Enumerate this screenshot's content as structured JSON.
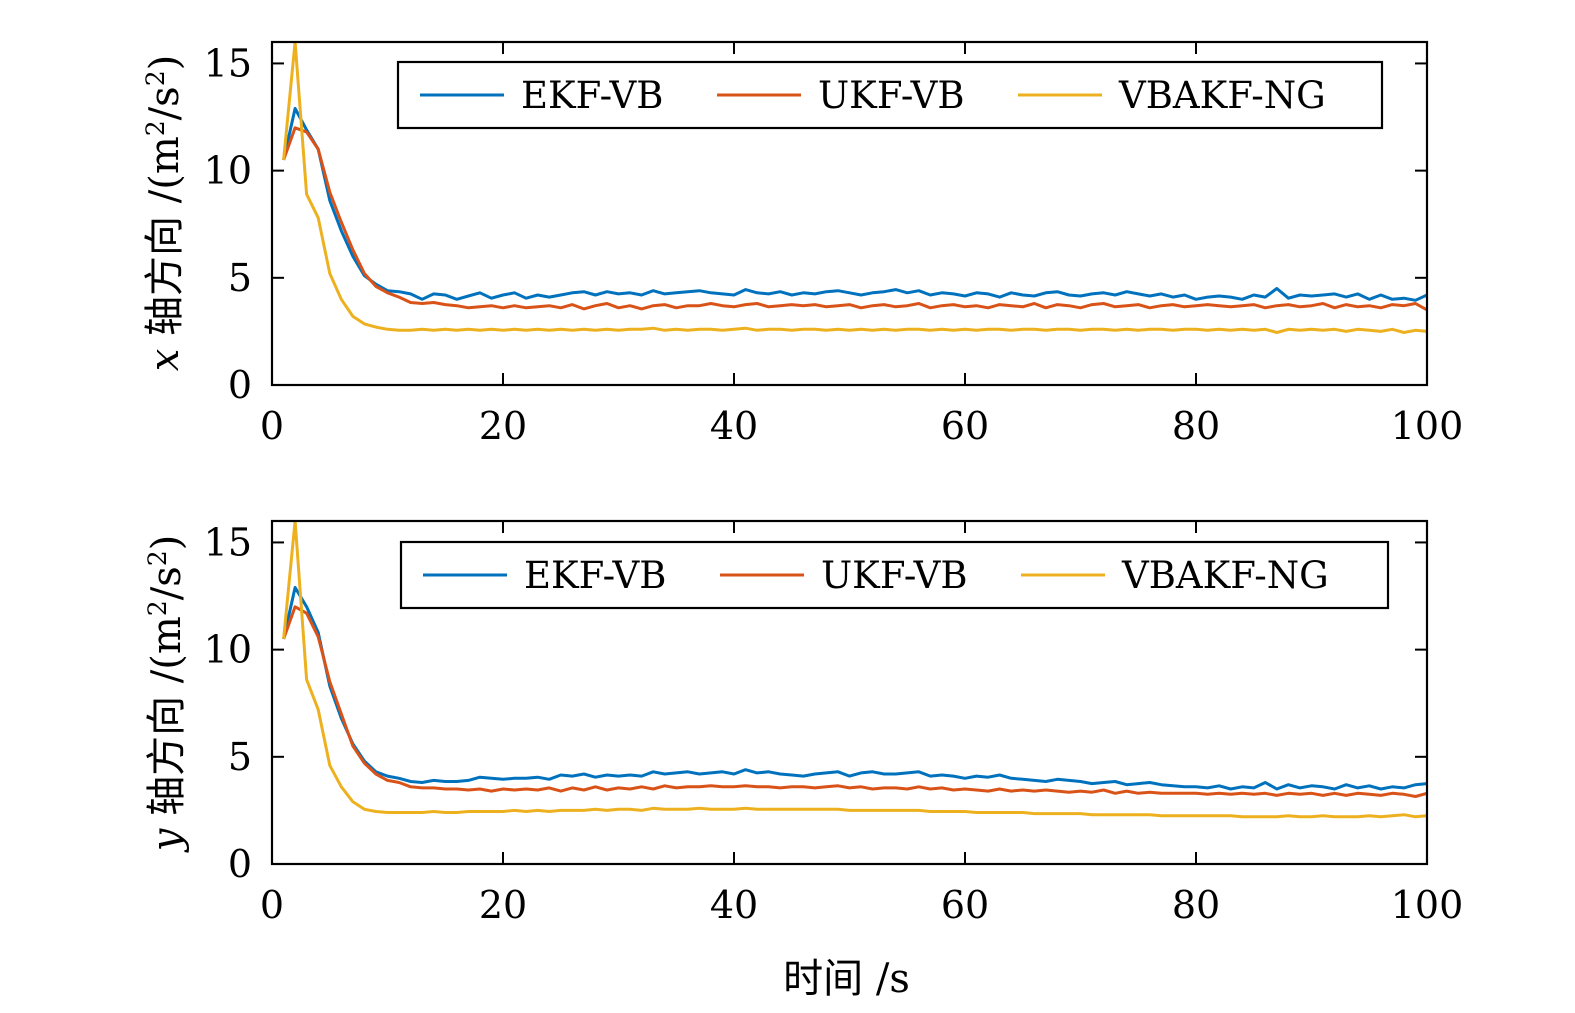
{
  "chart_data": [
    {
      "type": "line",
      "ylabel": {
        "var": "x",
        "cn": "轴方向",
        "unit_open": "/(m",
        "unit_sup1": "2",
        "unit_mid": "/s",
        "unit_sup2": "2",
        "unit_close": ")"
      },
      "xlim": [
        0,
        100
      ],
      "ylim": [
        0,
        16
      ],
      "xticks": [
        0,
        20,
        40,
        60,
        80,
        100
      ],
      "yticks": [
        0,
        5,
        10,
        15
      ],
      "legend": "top-right",
      "grid": false,
      "x": [
        1,
        2,
        3,
        4,
        5,
        6,
        7,
        8,
        9,
        10,
        11,
        12,
        13,
        14,
        15,
        16,
        17,
        18,
        19,
        20,
        21,
        22,
        23,
        24,
        25,
        26,
        27,
        28,
        29,
        30,
        31,
        32,
        33,
        34,
        35,
        36,
        37,
        38,
        39,
        40,
        41,
        42,
        43,
        44,
        45,
        46,
        47,
        48,
        49,
        50,
        51,
        52,
        53,
        54,
        55,
        56,
        57,
        58,
        59,
        60,
        61,
        62,
        63,
        64,
        65,
        66,
        67,
        68,
        69,
        70,
        71,
        72,
        73,
        74,
        75,
        76,
        77,
        78,
        79,
        80,
        81,
        82,
        83,
        84,
        85,
        86,
        87,
        88,
        89,
        90,
        91,
        92,
        93,
        94,
        95,
        96,
        97,
        98,
        99,
        100
      ],
      "series": [
        {
          "name": "EKF-VB",
          "color": "#0072BD",
          "values": [
            10.5,
            12.9,
            11.9,
            11.0,
            8.6,
            7.2,
            6.0,
            5.1,
            4.7,
            4.4,
            4.35,
            4.25,
            4.0,
            4.25,
            4.2,
            4.0,
            4.15,
            4.3,
            4.05,
            4.2,
            4.3,
            4.05,
            4.2,
            4.1,
            4.2,
            4.3,
            4.35,
            4.2,
            4.35,
            4.25,
            4.3,
            4.2,
            4.4,
            4.25,
            4.3,
            4.35,
            4.4,
            4.3,
            4.25,
            4.2,
            4.45,
            4.3,
            4.25,
            4.35,
            4.2,
            4.3,
            4.25,
            4.35,
            4.4,
            4.3,
            4.2,
            4.3,
            4.35,
            4.45,
            4.3,
            4.4,
            4.2,
            4.3,
            4.25,
            4.15,
            4.3,
            4.25,
            4.1,
            4.3,
            4.2,
            4.15,
            4.3,
            4.35,
            4.2,
            4.15,
            4.25,
            4.3,
            4.2,
            4.35,
            4.25,
            4.15,
            4.25,
            4.1,
            4.2,
            4.0,
            4.1,
            4.15,
            4.1,
            4.0,
            4.2,
            4.1,
            4.5,
            4.05,
            4.2,
            4.15,
            4.2,
            4.25,
            4.1,
            4.25,
            4.0,
            4.2,
            4.0,
            4.05,
            3.95,
            4.2
          ]
        },
        {
          "name": "UKF-VB",
          "color": "#D95319",
          "values": [
            10.5,
            12.0,
            11.8,
            11.0,
            9.0,
            7.6,
            6.3,
            5.2,
            4.6,
            4.3,
            4.1,
            3.85,
            3.8,
            3.85,
            3.75,
            3.7,
            3.6,
            3.65,
            3.7,
            3.6,
            3.7,
            3.6,
            3.65,
            3.7,
            3.6,
            3.75,
            3.55,
            3.7,
            3.8,
            3.6,
            3.7,
            3.55,
            3.7,
            3.75,
            3.6,
            3.7,
            3.7,
            3.8,
            3.7,
            3.65,
            3.75,
            3.8,
            3.65,
            3.7,
            3.75,
            3.7,
            3.75,
            3.65,
            3.7,
            3.75,
            3.6,
            3.7,
            3.75,
            3.65,
            3.7,
            3.8,
            3.6,
            3.7,
            3.75,
            3.65,
            3.7,
            3.6,
            3.75,
            3.7,
            3.65,
            3.8,
            3.6,
            3.75,
            3.7,
            3.6,
            3.75,
            3.8,
            3.65,
            3.7,
            3.75,
            3.6,
            3.7,
            3.75,
            3.65,
            3.7,
            3.75,
            3.7,
            3.65,
            3.7,
            3.75,
            3.6,
            3.7,
            3.75,
            3.65,
            3.7,
            3.8,
            3.6,
            3.75,
            3.65,
            3.7,
            3.6,
            3.75,
            3.7,
            3.8,
            3.5
          ]
        },
        {
          "name": "VBAKF-NG",
          "color": "#EDB120",
          "values": [
            10.5,
            16.0,
            8.9,
            7.8,
            5.2,
            4.0,
            3.2,
            2.85,
            2.7,
            2.6,
            2.55,
            2.55,
            2.6,
            2.55,
            2.6,
            2.55,
            2.6,
            2.55,
            2.6,
            2.55,
            2.6,
            2.55,
            2.6,
            2.55,
            2.6,
            2.55,
            2.6,
            2.55,
            2.6,
            2.55,
            2.6,
            2.6,
            2.65,
            2.55,
            2.6,
            2.55,
            2.6,
            2.6,
            2.55,
            2.6,
            2.65,
            2.55,
            2.6,
            2.6,
            2.55,
            2.6,
            2.6,
            2.55,
            2.6,
            2.55,
            2.6,
            2.55,
            2.6,
            2.55,
            2.6,
            2.6,
            2.55,
            2.6,
            2.55,
            2.6,
            2.55,
            2.6,
            2.6,
            2.55,
            2.6,
            2.6,
            2.55,
            2.6,
            2.6,
            2.55,
            2.6,
            2.6,
            2.55,
            2.6,
            2.55,
            2.6,
            2.6,
            2.55,
            2.6,
            2.6,
            2.55,
            2.6,
            2.55,
            2.6,
            2.55,
            2.6,
            2.45,
            2.6,
            2.55,
            2.6,
            2.55,
            2.6,
            2.5,
            2.6,
            2.55,
            2.5,
            2.6,
            2.45,
            2.55,
            2.5
          ]
        }
      ]
    },
    {
      "type": "line",
      "ylabel": {
        "var": "y",
        "cn": "轴方向",
        "unit_open": "/(m",
        "unit_sup1": "2",
        "unit_mid": "/s",
        "unit_sup2": "2",
        "unit_close": ")"
      },
      "xlabel": "时间 /s",
      "xlim": [
        0,
        100
      ],
      "ylim": [
        0,
        16
      ],
      "xticks": [
        0,
        20,
        40,
        60,
        80,
        100
      ],
      "yticks": [
        0,
        5,
        10,
        15
      ],
      "legend": "top-right",
      "grid": false,
      "x": [
        1,
        2,
        3,
        4,
        5,
        6,
        7,
        8,
        9,
        10,
        11,
        12,
        13,
        14,
        15,
        16,
        17,
        18,
        19,
        20,
        21,
        22,
        23,
        24,
        25,
        26,
        27,
        28,
        29,
        30,
        31,
        32,
        33,
        34,
        35,
        36,
        37,
        38,
        39,
        40,
        41,
        42,
        43,
        44,
        45,
        46,
        47,
        48,
        49,
        50,
        51,
        52,
        53,
        54,
        55,
        56,
        57,
        58,
        59,
        60,
        61,
        62,
        63,
        64,
        65,
        66,
        67,
        68,
        69,
        70,
        71,
        72,
        73,
        74,
        75,
        76,
        77,
        78,
        79,
        80,
        81,
        82,
        83,
        84,
        85,
        86,
        87,
        88,
        89,
        90,
        91,
        92,
        93,
        94,
        95,
        96,
        97,
        98,
        99,
        100
      ],
      "series": [
        {
          "name": "EKF-VB",
          "color": "#0072BD",
          "values": [
            10.5,
            12.9,
            12.0,
            10.8,
            8.3,
            6.8,
            5.6,
            4.8,
            4.3,
            4.1,
            4.0,
            3.85,
            3.8,
            3.9,
            3.85,
            3.85,
            3.9,
            4.05,
            4.0,
            3.95,
            4.0,
            4.0,
            4.05,
            3.95,
            4.15,
            4.1,
            4.2,
            4.05,
            4.15,
            4.1,
            4.15,
            4.1,
            4.3,
            4.2,
            4.25,
            4.3,
            4.2,
            4.25,
            4.3,
            4.2,
            4.4,
            4.25,
            4.3,
            4.2,
            4.15,
            4.1,
            4.2,
            4.25,
            4.3,
            4.1,
            4.25,
            4.3,
            4.2,
            4.2,
            4.25,
            4.3,
            4.1,
            4.15,
            4.1,
            4.0,
            4.1,
            4.05,
            4.15,
            4.0,
            3.95,
            3.9,
            3.85,
            3.95,
            3.9,
            3.85,
            3.75,
            3.8,
            3.85,
            3.7,
            3.75,
            3.8,
            3.7,
            3.65,
            3.6,
            3.6,
            3.55,
            3.65,
            3.5,
            3.6,
            3.55,
            3.8,
            3.5,
            3.7,
            3.55,
            3.65,
            3.6,
            3.5,
            3.7,
            3.55,
            3.65,
            3.5,
            3.6,
            3.55,
            3.7,
            3.75
          ]
        },
        {
          "name": "UKF-VB",
          "color": "#D95319",
          "values": [
            10.5,
            12.0,
            11.7,
            10.6,
            8.5,
            7.0,
            5.5,
            4.7,
            4.2,
            3.9,
            3.8,
            3.6,
            3.55,
            3.55,
            3.5,
            3.5,
            3.45,
            3.5,
            3.4,
            3.5,
            3.45,
            3.5,
            3.45,
            3.55,
            3.4,
            3.55,
            3.45,
            3.6,
            3.45,
            3.55,
            3.5,
            3.6,
            3.5,
            3.65,
            3.55,
            3.6,
            3.6,
            3.65,
            3.6,
            3.6,
            3.65,
            3.6,
            3.6,
            3.55,
            3.6,
            3.6,
            3.55,
            3.6,
            3.65,
            3.55,
            3.6,
            3.5,
            3.55,
            3.55,
            3.5,
            3.6,
            3.5,
            3.55,
            3.45,
            3.5,
            3.45,
            3.4,
            3.5,
            3.4,
            3.45,
            3.4,
            3.45,
            3.4,
            3.35,
            3.4,
            3.35,
            3.45,
            3.3,
            3.4,
            3.3,
            3.35,
            3.3,
            3.3,
            3.3,
            3.3,
            3.25,
            3.3,
            3.25,
            3.3,
            3.25,
            3.3,
            3.2,
            3.3,
            3.25,
            3.3,
            3.2,
            3.3,
            3.2,
            3.3,
            3.25,
            3.2,
            3.3,
            3.25,
            3.15,
            3.3
          ]
        },
        {
          "name": "VBAKF-NG",
          "color": "#EDB120",
          "values": [
            10.5,
            16.0,
            8.6,
            7.2,
            4.6,
            3.6,
            2.9,
            2.55,
            2.45,
            2.4,
            2.4,
            2.4,
            2.4,
            2.45,
            2.4,
            2.4,
            2.45,
            2.45,
            2.45,
            2.45,
            2.5,
            2.45,
            2.5,
            2.45,
            2.5,
            2.5,
            2.5,
            2.55,
            2.5,
            2.55,
            2.55,
            2.5,
            2.6,
            2.55,
            2.55,
            2.55,
            2.6,
            2.55,
            2.55,
            2.55,
            2.6,
            2.55,
            2.55,
            2.55,
            2.55,
            2.55,
            2.55,
            2.55,
            2.55,
            2.5,
            2.5,
            2.5,
            2.5,
            2.5,
            2.5,
            2.5,
            2.45,
            2.45,
            2.45,
            2.45,
            2.4,
            2.4,
            2.4,
            2.4,
            2.4,
            2.35,
            2.35,
            2.35,
            2.35,
            2.35,
            2.3,
            2.3,
            2.3,
            2.3,
            2.3,
            2.3,
            2.25,
            2.25,
            2.25,
            2.25,
            2.25,
            2.25,
            2.25,
            2.2,
            2.2,
            2.2,
            2.2,
            2.25,
            2.2,
            2.2,
            2.25,
            2.2,
            2.2,
            2.2,
            2.25,
            2.2,
            2.25,
            2.3,
            2.2,
            2.25
          ]
        }
      ]
    }
  ]
}
